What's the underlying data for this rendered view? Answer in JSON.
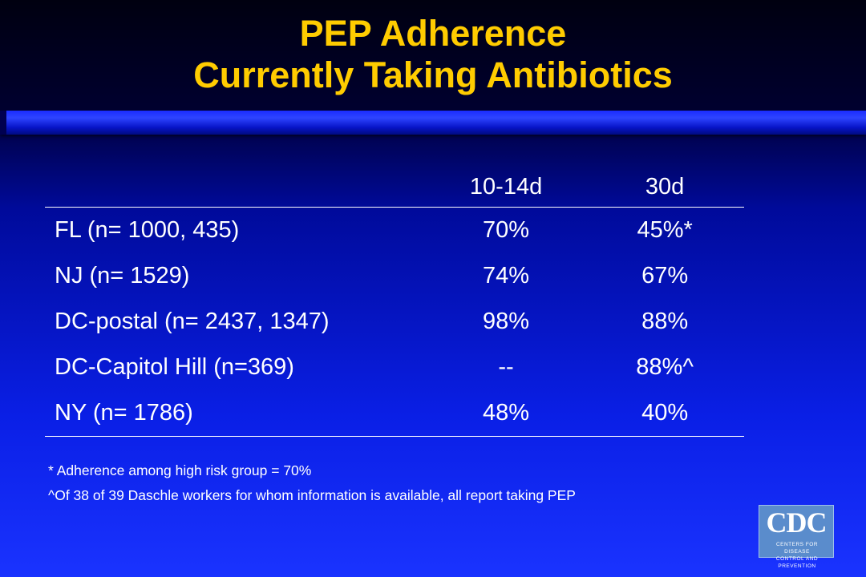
{
  "slide": {
    "title_line1": "PEP Adherence",
    "title_line2": "Currently Taking Antibiotics",
    "accent_color": "#ffcc00"
  },
  "table": {
    "headers": [
      "",
      "10-14d",
      "30d"
    ],
    "rows": [
      {
        "location": "FL (n= 1000, 435)",
        "d10_14": "70%",
        "d30": "45%*"
      },
      {
        "location": "NJ (n= 1529)",
        "d10_14": "74%",
        "d30": "67%"
      },
      {
        "location": "DC-postal (n= 2437, 1347)",
        "d10_14": "98%",
        "d30": "88%"
      },
      {
        "location": "DC-Capitol Hill (n=369)",
        "d10_14": "--",
        "d30": "88%^"
      },
      {
        "location": "NY (n= 1786)",
        "d10_14": "48%",
        "d30": "40%"
      }
    ]
  },
  "footnotes": [
    "* Adherence among high risk group = 70%",
    "^Of 38 of 39 Daschle workers for whom information is available, all report taking PEP"
  ],
  "logo": {
    "letters": "CDC",
    "line1": "Centers for Disease",
    "line2": "Control and Prevention"
  }
}
